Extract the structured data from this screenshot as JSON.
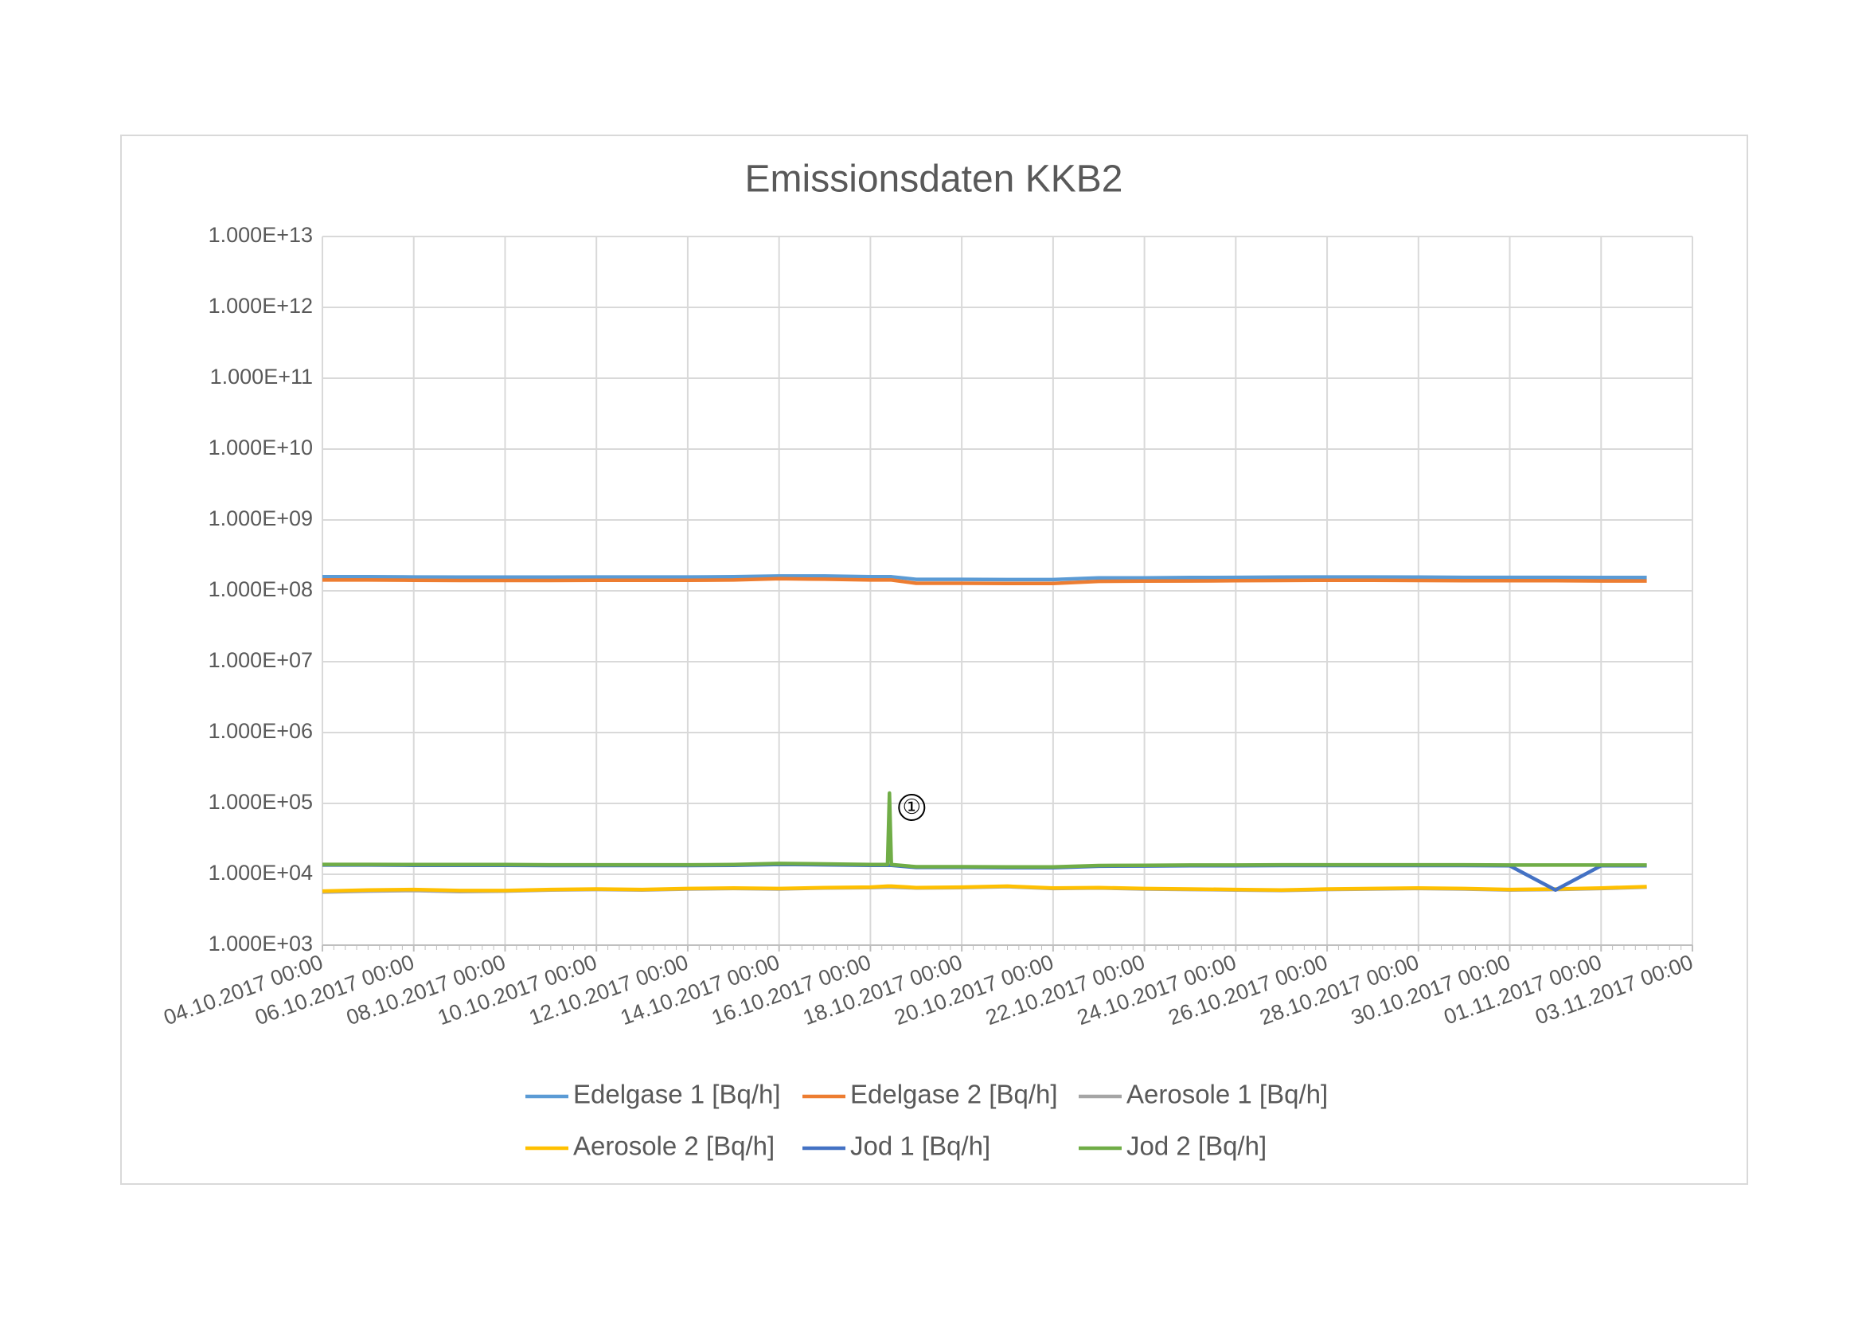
{
  "chart_data": {
    "type": "line",
    "title": "Emissionsdaten KKB2",
    "annotation": "①",
    "log_y": true,
    "grid": true,
    "legend": "bottom",
    "x": [
      "04.10.2017 00:00",
      "05.10.2017 00:00",
      "06.10.2017 00:00",
      "07.10.2017 00:00",
      "08.10.2017 00:00",
      "09.10.2017 00:00",
      "10.10.2017 00:00",
      "11.10.2017 00:00",
      "12.10.2017 00:00",
      "13.10.2017 00:00",
      "14.10.2017 00:00",
      "15.10.2017 00:00",
      "16.10.2017 00:00",
      "16.10.2017 09:00",
      "16.10.2017 10:00",
      "16.10.2017 11:00",
      "17.10.2017 00:00",
      "18.10.2017 00:00",
      "19.10.2017 00:00",
      "20.10.2017 00:00",
      "21.10.2017 00:00",
      "22.10.2017 00:00",
      "23.10.2017 00:00",
      "24.10.2017 00:00",
      "25.10.2017 00:00",
      "26.10.2017 00:00",
      "27.10.2017 00:00",
      "28.10.2017 00:00",
      "29.10.2017 00:00",
      "30.10.2017 00:00",
      "31.10.2017 00:00",
      "01.11.2017 00:00",
      "02.11.2017 00:00"
    ],
    "xlim": [
      "04.10.2017 00:00",
      "03.11.2017 00:00"
    ],
    "xticks": [
      "04.10.2017 00:00",
      "06.10.2017 00:00",
      "08.10.2017 00:00",
      "10.10.2017 00:00",
      "12.10.2017 00:00",
      "14.10.2017 00:00",
      "16.10.2017 00:00",
      "18.10.2017 00:00",
      "20.10.2017 00:00",
      "22.10.2017 00:00",
      "24.10.2017 00:00",
      "26.10.2017 00:00",
      "28.10.2017 00:00",
      "30.10.2017 00:00",
      "01.11.2017 00:00",
      "03.11.2017 00:00"
    ],
    "ylim": [
      1000,
      10000000000000
    ],
    "yticks": [
      {
        "value": 1000,
        "label": "1.000E+03"
      },
      {
        "value": 10000,
        "label": "1.000E+04"
      },
      {
        "value": 100000,
        "label": "1.000E+05"
      },
      {
        "value": 1000000,
        "label": "1.000E+06"
      },
      {
        "value": 10000000,
        "label": "1.000E+07"
      },
      {
        "value": 100000000,
        "label": "1.000E+08"
      },
      {
        "value": 1000000000,
        "label": "1.000E+09"
      },
      {
        "value": 10000000000,
        "label": "1.000E+10"
      },
      {
        "value": 100000000000,
        "label": "1.000E+11"
      },
      {
        "value": 1000000000000,
        "label": "1.000E+12"
      },
      {
        "value": 10000000000000,
        "label": "1.000E+13"
      }
    ],
    "series": [
      {
        "name": "Edelgase 1 [Bq/h]",
        "color": "#5b9bd5",
        "values": [
          158000000.0,
          158000000.0,
          157000000.0,
          156000000.0,
          156000000.0,
          156000000.0,
          157000000.0,
          157000000.0,
          157000000.0,
          158000000.0,
          162000000.0,
          162000000.0,
          158000000.0,
          158000000.0,
          158000000.0,
          158000000.0,
          145000000.0,
          145000000.0,
          144000000.0,
          144000000.0,
          152000000.0,
          152000000.0,
          154000000.0,
          155000000.0,
          156000000.0,
          157000000.0,
          157000000.0,
          156000000.0,
          155000000.0,
          155000000.0,
          155000000.0,
          154000000.0,
          154000000.0
        ]
      },
      {
        "name": "Edelgase 2 [Bq/h]",
        "color": "#ed7d31",
        "values": [
          142000000.0,
          142000000.0,
          141000000.0,
          140000000.0,
          140000000.0,
          140000000.0,
          141000000.0,
          141000000.0,
          141000000.0,
          142000000.0,
          148000000.0,
          146000000.0,
          142000000.0,
          142000000.0,
          142000000.0,
          142000000.0,
          128000000.0,
          128000000.0,
          127000000.0,
          127000000.0,
          136000000.0,
          137000000.0,
          138000000.0,
          139000000.0,
          140000000.0,
          141000000.0,
          141000000.0,
          140000000.0,
          139000000.0,
          139000000.0,
          139000000.0,
          138000000.0,
          138000000.0
        ]
      },
      {
        "name": "Aerosole 1 [Bq/h]",
        "color": "#a5a5a5",
        "values": [
          5600,
          5800,
          5900,
          5700,
          5800,
          6000,
          6100,
          6000,
          6200,
          6300,
          6200,
          6400,
          6500,
          6600,
          6600,
          6600,
          6400,
          6500,
          6700,
          6300,
          6400,
          6200,
          6100,
          6000,
          5900,
          6100,
          6200,
          6300,
          6200,
          6000,
          6100,
          6300,
          6600
        ]
      },
      {
        "name": "Aerosole 2 [Bq/h]",
        "color": "#ffc000",
        "values": [
          5800,
          6000,
          6100,
          5900,
          5900,
          6100,
          6200,
          6100,
          6300,
          6400,
          6300,
          6500,
          6600,
          6800,
          6800,
          6800,
          6500,
          6600,
          6800,
          6400,
          6500,
          6300,
          6200,
          6100,
          6000,
          6200,
          6300,
          6400,
          6300,
          6100,
          6200,
          6400,
          6700
        ]
      },
      {
        "name": "Jod 1 [Bq/h]",
        "color": "#4472c4",
        "values": [
          13500,
          13500,
          13400,
          13400,
          13400,
          13300,
          13300,
          13300,
          13300,
          13400,
          13800,
          13600,
          13400,
          13400,
          13400,
          13400,
          12500,
          12500,
          12400,
          12400,
          13000,
          13100,
          13200,
          13200,
          13300,
          13300,
          13300,
          13300,
          13300,
          13200,
          6000,
          13200,
          13200
        ]
      },
      {
        "name": "Jod 2 [Bq/h]",
        "color": "#70ad47",
        "values": [
          13800,
          13800,
          13700,
          13700,
          13700,
          13600,
          13600,
          13600,
          13600,
          13700,
          14200,
          14000,
          13700,
          13700,
          140000,
          13700,
          12800,
          12800,
          12700,
          12700,
          13300,
          13400,
          13500,
          13500,
          13600,
          13600,
          13600,
          13600,
          13600,
          13500,
          13500,
          13500,
          13500
        ]
      }
    ]
  }
}
